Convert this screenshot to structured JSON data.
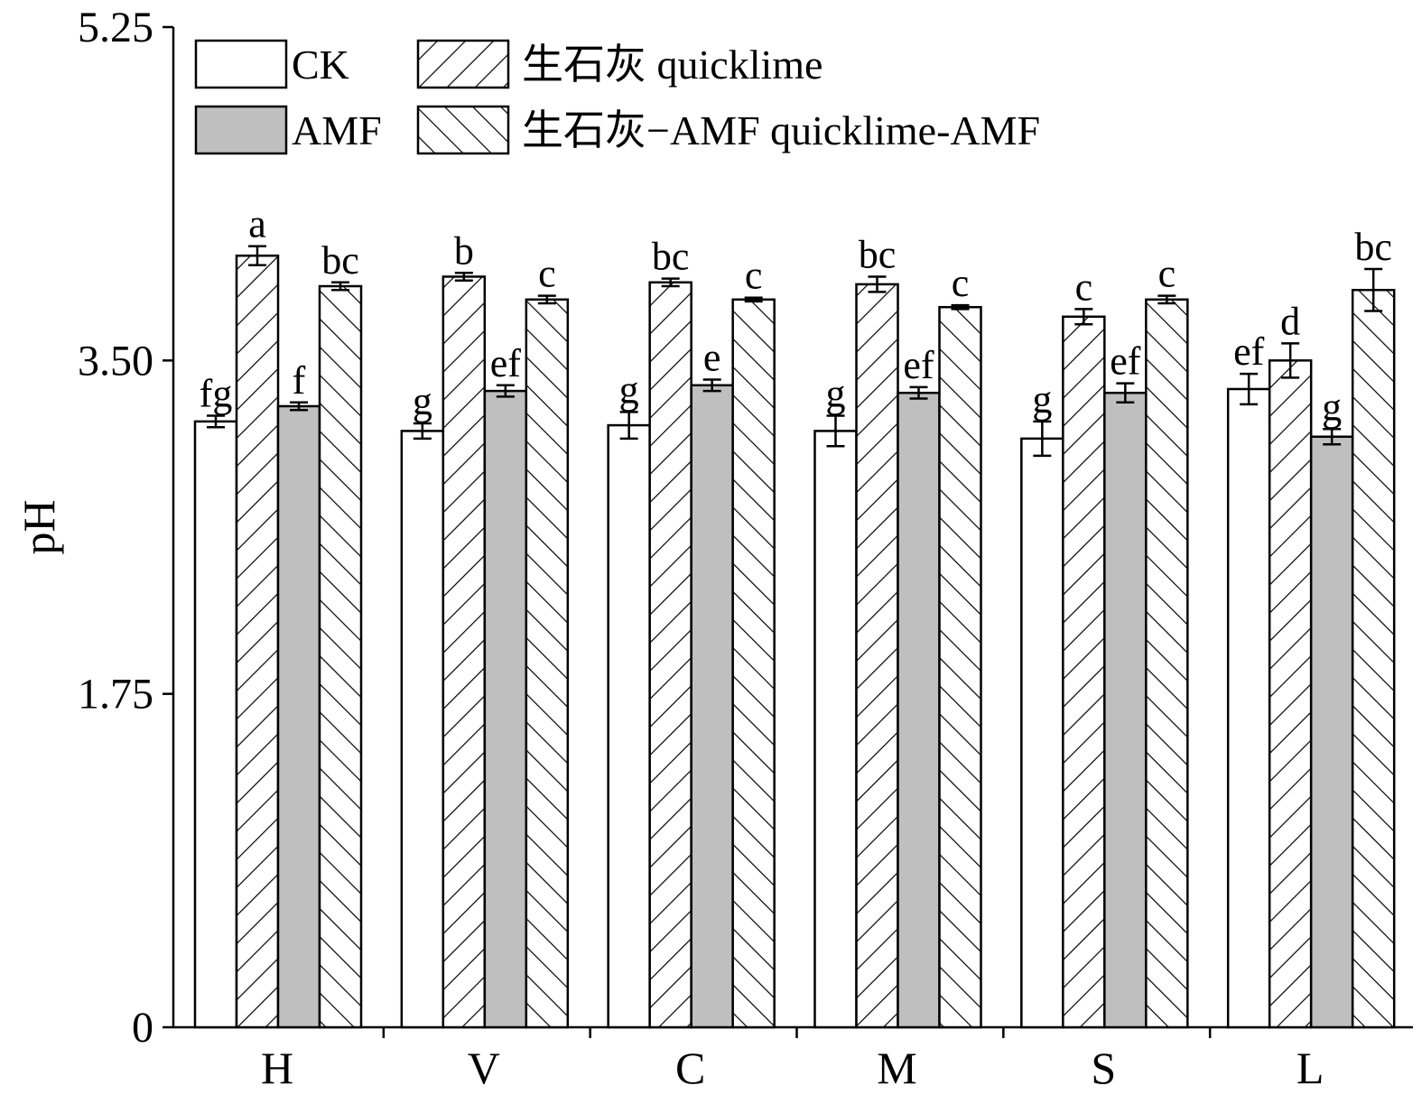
{
  "chart_data": {
    "type": "bar",
    "ylabel": "pH",
    "xlabel": "",
    "ylim": [
      0,
      5.25
    ],
    "yticks": [
      "0",
      "1.75",
      "3.50",
      "5.25"
    ],
    "categories": [
      "H",
      "V",
      "C",
      "M",
      "S",
      "L"
    ],
    "series": [
      {
        "name": "CK",
        "fill": "#ffffff",
        "pattern": "none",
        "values": [
          3.18,
          3.13,
          3.16,
          3.13,
          3.09,
          3.35
        ],
        "errors": [
          0.03,
          0.04,
          0.07,
          0.08,
          0.09,
          0.08
        ],
        "letters": [
          "fg",
          "g",
          "g",
          "g",
          "g",
          "ef"
        ]
      },
      {
        "name": "生石灰 quicklime",
        "fill": "#ffffff",
        "pattern": "forward-hatch",
        "values": [
          4.05,
          3.94,
          3.91,
          3.9,
          3.73,
          3.5
        ],
        "errors": [
          0.05,
          0.02,
          0.02,
          0.04,
          0.04,
          0.09
        ],
        "letters": [
          "a",
          "b",
          "bc",
          "bc",
          "c",
          "d"
        ]
      },
      {
        "name": "AMF",
        "fill": "#bfbfbf",
        "pattern": "none",
        "values": [
          3.26,
          3.34,
          3.37,
          3.33,
          3.33,
          3.1
        ],
        "errors": [
          0.02,
          0.03,
          0.03,
          0.03,
          0.05,
          0.04
        ],
        "letters": [
          "f",
          "ef",
          "e",
          "ef",
          "ef",
          "g"
        ]
      },
      {
        "name": "生石灰−AMF quicklime-AMF",
        "fill": "#ffffff",
        "pattern": "backward-hatch",
        "values": [
          3.89,
          3.82,
          3.82,
          3.78,
          3.82,
          3.87
        ],
        "errors": [
          0.02,
          0.02,
          0.01,
          0.01,
          0.02,
          0.11
        ],
        "letters": [
          "bc",
          "c",
          "c",
          "c",
          "c",
          "bc"
        ]
      }
    ],
    "legend": {
      "placement": "top-left",
      "order": [
        "CK",
        "生石灰 quicklime",
        "AMF",
        "生石灰−AMF quicklime-AMF"
      ]
    },
    "grid": false
  }
}
